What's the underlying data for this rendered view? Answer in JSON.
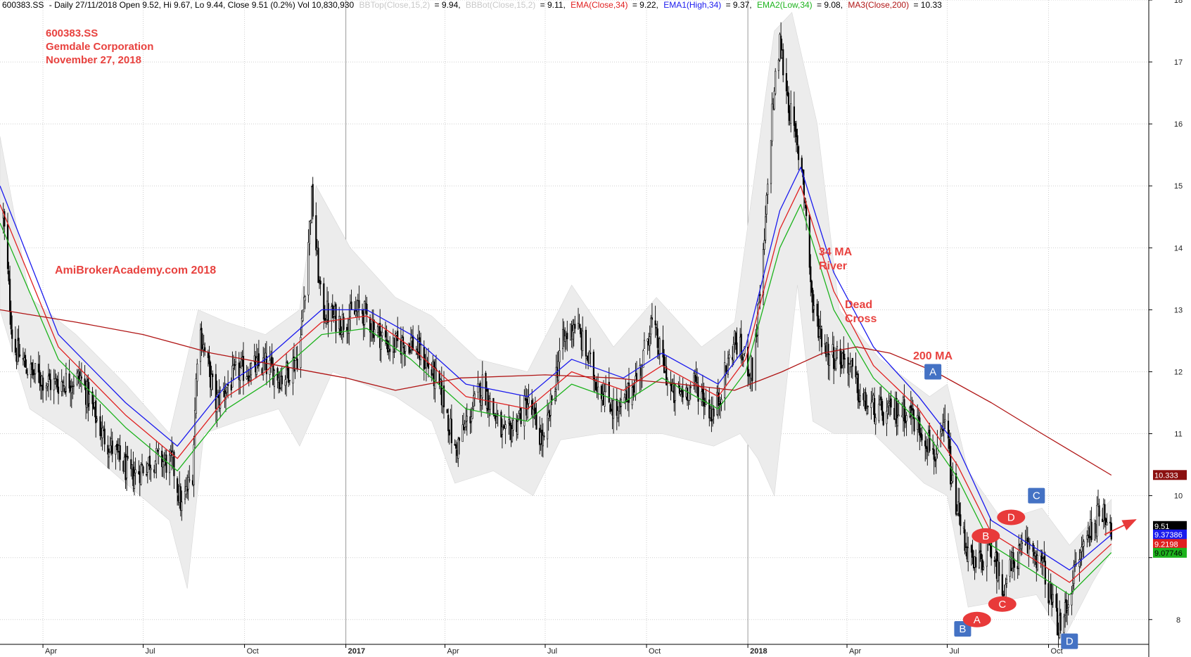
{
  "header": {
    "symbol": "600383.SS",
    "info": "- Daily 27/11/2018 Open 9.52, Hi 9.67, Lo 9.44, Close 9.51 (0.2%) Vol 10,830,930",
    "bbtop_label": "BBTop(Close,15,2)",
    "bbtop_value": "= 9.94,",
    "bbbot_label": "BBBot(Close,15,2)",
    "bbbot_value": "= 9.11,",
    "ema_label": "EMA(Close,34)",
    "ema_value": "= 9.22,",
    "ema1_label": "EMA1(High,34)",
    "ema1_value": "= 9.37,",
    "ema2_label": "EMA2(Low,34)",
    "ema2_value": "= 9.08,",
    "ma3_label": "MA3(Close,200)",
    "ma3_value": "= 10.33"
  },
  "annotations": {
    "title_line1": "600383.SS",
    "title_line2": "Gemdale Corporation",
    "title_line3": "November 27, 2018",
    "watermark": "AmiBrokerAcademy.com  2018",
    "ma34_line1": "34 MA",
    "ma34_line2": "River",
    "dead_line1": "Dead",
    "dead_line2": "Cross",
    "ma200": "200 MA"
  },
  "colors": {
    "candles": "#000000",
    "bollinger_fill": "#ececec",
    "ema_close": "#e02020",
    "ema_high": "#1a1aee",
    "ema_low": "#1db31d",
    "ma200": "#b01515",
    "annotation": "#e8423f",
    "badge_blue": "#4472c4",
    "oval_red": "#e83a3a",
    "grid": "#cfcfcf",
    "separator": "#9a9a9a"
  },
  "chart_data": {
    "type": "line",
    "title": "600383.SS Gemdale Corporation November 27, 2018",
    "ylim": [
      7.6,
      18
    ],
    "y_ticks": [
      8,
      9,
      10,
      11,
      12,
      13,
      14,
      15,
      16,
      17,
      18
    ],
    "y_tick_labels": [
      "8",
      "",
      "10",
      "11",
      "12",
      "13",
      "14",
      "15",
      "16",
      "17",
      "18"
    ],
    "x_range": [
      "2016-02-22",
      "2018-12-31"
    ],
    "x_ticks": [
      {
        "date": "2016-04-01",
        "label": "Apr",
        "year_start": false
      },
      {
        "date": "2016-07-01",
        "label": "Jul",
        "year_start": false
      },
      {
        "date": "2016-10-01",
        "label": "Oct",
        "year_start": false
      },
      {
        "date": "2017-01-01",
        "label": "2017",
        "year_start": true
      },
      {
        "date": "2017-04-01",
        "label": "Apr",
        "year_start": false
      },
      {
        "date": "2017-07-01",
        "label": "Jul",
        "year_start": false
      },
      {
        "date": "2017-10-01",
        "label": "Oct",
        "year_start": false
      },
      {
        "date": "2018-01-01",
        "label": "2018",
        "year_start": true
      },
      {
        "date": "2018-04-01",
        "label": "Apr",
        "year_start": false
      },
      {
        "date": "2018-07-01",
        "label": "Jul",
        "year_start": false
      },
      {
        "date": "2018-10-01",
        "label": "Oct",
        "year_start": false
      }
    ],
    "price_path": [
      [
        "2016-02-25",
        14.5
      ],
      [
        "2016-03-05",
        12.4
      ],
      [
        "2016-03-20",
        12.0
      ],
      [
        "2016-04-10",
        11.8
      ],
      [
        "2016-05-05",
        11.9
      ],
      [
        "2016-05-25",
        11.0
      ],
      [
        "2016-06-20",
        10.3
      ],
      [
        "2016-07-10",
        10.6
      ],
      [
        "2016-07-28",
        10.5
      ],
      [
        "2016-08-05",
        9.8
      ],
      [
        "2016-08-15",
        10.4
      ],
      [
        "2016-08-20",
        12.8
      ],
      [
        "2016-09-05",
        11.5
      ],
      [
        "2016-09-25",
        12.0
      ],
      [
        "2016-10-20",
        12.1
      ],
      [
        "2016-11-05",
        11.9
      ],
      [
        "2016-11-20",
        12.3
      ],
      [
        "2016-12-01",
        14.8
      ],
      [
        "2016-12-10",
        13.0
      ],
      [
        "2016-12-28",
        12.8
      ],
      [
        "2017-01-15",
        13.0
      ],
      [
        "2017-02-10",
        12.4
      ],
      [
        "2017-03-01",
        12.5
      ],
      [
        "2017-03-20",
        12.0
      ],
      [
        "2017-04-01",
        11.5
      ],
      [
        "2017-04-10",
        10.7
      ],
      [
        "2017-05-05",
        11.8
      ],
      [
        "2017-05-25",
        10.9
      ],
      [
        "2017-06-15",
        11.5
      ],
      [
        "2017-06-30",
        10.8
      ],
      [
        "2017-07-15",
        12.4
      ],
      [
        "2017-07-28",
        12.8
      ],
      [
        "2017-08-15",
        11.9
      ],
      [
        "2017-09-05",
        11.3
      ],
      [
        "2017-09-25",
        12.0
      ],
      [
        "2017-10-05",
        12.8
      ],
      [
        "2017-10-25",
        11.6
      ],
      [
        "2017-11-15",
        11.8
      ],
      [
        "2017-12-01",
        11.3
      ],
      [
        "2017-12-20",
        12.5
      ],
      [
        "2018-01-05",
        12.0
      ],
      [
        "2018-01-15",
        13.8
      ],
      [
        "2018-01-23",
        16.2
      ],
      [
        "2018-01-30",
        17.3
      ],
      [
        "2018-02-10",
        16.0
      ],
      [
        "2018-02-20",
        15.2
      ],
      [
        "2018-03-01",
        13.0
      ],
      [
        "2018-03-15",
        12.3
      ],
      [
        "2018-04-01",
        12.2
      ],
      [
        "2018-04-15",
        11.5
      ],
      [
        "2018-05-05",
        11.3
      ],
      [
        "2018-05-25",
        11.4
      ],
      [
        "2018-06-10",
        11.0
      ],
      [
        "2018-06-22",
        10.6
      ],
      [
        "2018-06-30",
        11.2
      ],
      [
        "2018-07-05",
        10.2
      ],
      [
        "2018-07-15",
        9.4
      ],
      [
        "2018-07-25",
        8.8
      ],
      [
        "2018-08-10",
        9.2
      ],
      [
        "2018-08-20",
        8.5
      ],
      [
        "2018-09-01",
        9.0
      ],
      [
        "2018-09-15",
        9.2
      ],
      [
        "2018-09-25",
        8.9
      ],
      [
        "2018-10-05",
        8.2
      ],
      [
        "2018-10-12",
        7.8
      ],
      [
        "2018-10-22",
        8.6
      ],
      [
        "2018-11-05",
        9.4
      ],
      [
        "2018-11-20",
        9.8
      ],
      [
        "2018-11-27",
        9.51
      ]
    ],
    "series": [
      {
        "name": "EMA1(High,34)",
        "color": "#1a1aee",
        "points": [
          [
            "2016-02-22",
            15.0
          ],
          [
            "2016-04-15",
            12.6
          ],
          [
            "2016-06-15",
            11.5
          ],
          [
            "2016-08-01",
            10.8
          ],
          [
            "2016-09-15",
            11.8
          ],
          [
            "2016-10-20",
            12.2
          ],
          [
            "2016-12-10",
            13.0
          ],
          [
            "2017-01-20",
            13.0
          ],
          [
            "2017-03-01",
            12.6
          ],
          [
            "2017-04-20",
            11.8
          ],
          [
            "2017-06-15",
            11.6
          ],
          [
            "2017-07-25",
            12.2
          ],
          [
            "2017-09-10",
            11.9
          ],
          [
            "2017-10-15",
            12.3
          ],
          [
            "2017-12-05",
            11.8
          ],
          [
            "2017-12-30",
            12.4
          ],
          [
            "2018-01-30",
            14.6
          ],
          [
            "2018-02-18",
            15.3
          ],
          [
            "2018-03-20",
            13.6
          ],
          [
            "2018-04-25",
            12.4
          ],
          [
            "2018-06-05",
            11.6
          ],
          [
            "2018-07-10",
            10.8
          ],
          [
            "2018-08-10",
            9.6
          ],
          [
            "2018-09-15",
            9.2
          ],
          [
            "2018-10-20",
            8.8
          ],
          [
            "2018-11-27",
            9.37
          ]
        ]
      },
      {
        "name": "EMA(Close,34)",
        "color": "#e02020",
        "points": [
          [
            "2016-02-22",
            14.7
          ],
          [
            "2016-04-15",
            12.4
          ],
          [
            "2016-06-15",
            11.3
          ],
          [
            "2016-08-01",
            10.6
          ],
          [
            "2016-09-15",
            11.6
          ],
          [
            "2016-10-20",
            12.0
          ],
          [
            "2016-12-10",
            12.8
          ],
          [
            "2017-01-20",
            12.9
          ],
          [
            "2017-03-01",
            12.4
          ],
          [
            "2017-04-20",
            11.6
          ],
          [
            "2017-06-15",
            11.4
          ],
          [
            "2017-07-25",
            12.0
          ],
          [
            "2017-09-10",
            11.7
          ],
          [
            "2017-10-15",
            12.1
          ],
          [
            "2017-12-05",
            11.6
          ],
          [
            "2017-12-30",
            12.2
          ],
          [
            "2018-01-30",
            14.3
          ],
          [
            "2018-02-18",
            15.0
          ],
          [
            "2018-03-20",
            13.3
          ],
          [
            "2018-04-25",
            12.1
          ],
          [
            "2018-06-05",
            11.4
          ],
          [
            "2018-07-10",
            10.5
          ],
          [
            "2018-08-10",
            9.4
          ],
          [
            "2018-09-15",
            9.0
          ],
          [
            "2018-10-20",
            8.6
          ],
          [
            "2018-11-27",
            9.22
          ]
        ]
      },
      {
        "name": "EMA2(Low,34)",
        "color": "#1db31d",
        "points": [
          [
            "2016-02-22",
            14.4
          ],
          [
            "2016-04-15",
            12.2
          ],
          [
            "2016-06-15",
            11.1
          ],
          [
            "2016-08-01",
            10.4
          ],
          [
            "2016-09-15",
            11.4
          ],
          [
            "2016-10-20",
            11.8
          ],
          [
            "2016-12-10",
            12.6
          ],
          [
            "2017-01-20",
            12.7
          ],
          [
            "2017-03-01",
            12.2
          ],
          [
            "2017-04-20",
            11.4
          ],
          [
            "2017-06-15",
            11.2
          ],
          [
            "2017-07-25",
            11.8
          ],
          [
            "2017-09-10",
            11.5
          ],
          [
            "2017-10-15",
            11.9
          ],
          [
            "2017-12-05",
            11.4
          ],
          [
            "2017-12-30",
            12.0
          ],
          [
            "2018-01-30",
            14.0
          ],
          [
            "2018-02-18",
            14.7
          ],
          [
            "2018-03-20",
            13.0
          ],
          [
            "2018-04-25",
            11.9
          ],
          [
            "2018-06-05",
            11.2
          ],
          [
            "2018-07-10",
            10.3
          ],
          [
            "2018-08-10",
            9.2
          ],
          [
            "2018-09-15",
            8.8
          ],
          [
            "2018-10-20",
            8.4
          ],
          [
            "2018-11-27",
            9.08
          ]
        ]
      },
      {
        "name": "MA3(Close,200)",
        "color": "#b01515",
        "points": [
          [
            "2016-02-22",
            13.0
          ],
          [
            "2016-05-01",
            12.8
          ],
          [
            "2016-07-01",
            12.6
          ],
          [
            "2016-09-01",
            12.3
          ],
          [
            "2016-11-01",
            12.1
          ],
          [
            "2017-01-01",
            11.9
          ],
          [
            "2017-02-15",
            11.7
          ],
          [
            "2017-04-15",
            11.9
          ],
          [
            "2017-07-01",
            11.95
          ],
          [
            "2017-09-01",
            11.9
          ],
          [
            "2017-11-01",
            11.8
          ],
          [
            "2017-12-20",
            11.7
          ],
          [
            "2018-02-01",
            12.0
          ],
          [
            "2018-03-10",
            12.3
          ],
          [
            "2018-04-10",
            12.4
          ],
          [
            "2018-05-10",
            12.3
          ],
          [
            "2018-06-20",
            12.0
          ],
          [
            "2018-08-10",
            11.5
          ],
          [
            "2018-09-25",
            11.0
          ],
          [
            "2018-11-27",
            10.33
          ]
        ]
      }
    ],
    "bollinger_band": {
      "name": "BBTop/BBBot(Close,15,2)",
      "upper": [
        [
          "2016-02-22",
          15.8
        ],
        [
          "2016-03-20",
          13.2
        ],
        [
          "2016-05-01",
          12.6
        ],
        [
          "2016-06-15",
          11.8
        ],
        [
          "2016-07-25",
          11.0
        ],
        [
          "2016-08-20",
          13.0
        ],
        [
          "2016-09-15",
          12.8
        ],
        [
          "2016-10-20",
          12.6
        ],
        [
          "2016-11-20",
          13.0
        ],
        [
          "2016-12-05",
          15.0
        ],
        [
          "2017-01-05",
          14.0
        ],
        [
          "2017-02-15",
          13.2
        ],
        [
          "2017-03-20",
          12.9
        ],
        [
          "2017-05-01",
          12.2
        ],
        [
          "2017-06-15",
          12.0
        ],
        [
          "2017-07-25",
          13.4
        ],
        [
          "2017-09-01",
          12.4
        ],
        [
          "2017-10-10",
          13.2
        ],
        [
          "2017-11-20",
          12.4
        ],
        [
          "2017-12-20",
          12.8
        ],
        [
          "2018-01-25",
          17.5
        ],
        [
          "2018-02-10",
          17.8
        ],
        [
          "2018-03-05",
          16.0
        ],
        [
          "2018-03-25",
          13.0
        ],
        [
          "2018-05-01",
          12.2
        ],
        [
          "2018-06-15",
          11.6
        ],
        [
          "2018-07-01",
          11.8
        ],
        [
          "2018-07-20",
          10.4
        ],
        [
          "2018-08-20",
          9.6
        ],
        [
          "2018-09-25",
          9.8
        ],
        [
          "2018-10-20",
          9.2
        ],
        [
          "2018-11-27",
          9.94
        ]
      ],
      "lower": [
        [
          "2016-02-22",
          13.0
        ],
        [
          "2016-03-20",
          11.4
        ],
        [
          "2016-05-01",
          10.9
        ],
        [
          "2016-06-15",
          10.2
        ],
        [
          "2016-07-25",
          9.6
        ],
        [
          "2016-08-10",
          8.5
        ],
        [
          "2016-08-25",
          11.0
        ],
        [
          "2016-09-25",
          11.2
        ],
        [
          "2016-11-01",
          11.4
        ],
        [
          "2016-11-20",
          10.8
        ],
        [
          "2016-12-20",
          12.0
        ],
        [
          "2017-02-15",
          11.6
        ],
        [
          "2017-03-20",
          11.2
        ],
        [
          "2017-04-10",
          10.2
        ],
        [
          "2017-05-15",
          10.4
        ],
        [
          "2017-06-20",
          10.0
        ],
        [
          "2017-07-15",
          10.9
        ],
        [
          "2017-08-20",
          11.0
        ],
        [
          "2017-10-15",
          11.0
        ],
        [
          "2017-12-01",
          10.8
        ],
        [
          "2017-12-25",
          11.0
        ],
        [
          "2018-01-10",
          10.6
        ],
        [
          "2018-01-25",
          10.0
        ],
        [
          "2018-02-15",
          13.4
        ],
        [
          "2018-03-01",
          11.2
        ],
        [
          "2018-03-20",
          11.0
        ],
        [
          "2018-04-25",
          11.0
        ],
        [
          "2018-06-10",
          10.2
        ],
        [
          "2018-07-01",
          10.0
        ],
        [
          "2018-07-20",
          8.2
        ],
        [
          "2018-08-20",
          8.3
        ],
        [
          "2018-09-20",
          8.4
        ],
        [
          "2018-10-15",
          7.7
        ],
        [
          "2018-11-10",
          8.6
        ],
        [
          "2018-11-27",
          9.11
        ]
      ]
    },
    "value_tags": [
      {
        "value": 10.333,
        "label": "10.333",
        "bg": "#8b1010",
        "fg": "#ffffff"
      },
      {
        "value": 9.51,
        "label": "9.51",
        "bg": "#000000",
        "fg": "#ffffff"
      },
      {
        "value": 9.37386,
        "label": "9.37386",
        "bg": "#1a1aee",
        "fg": "#ffffff"
      },
      {
        "value": 9.2198,
        "label": "9.2198",
        "bg": "#e02020",
        "fg": "#ffffff"
      },
      {
        "value": 9.07746,
        "label": "9.07746",
        "bg": "#1db31d",
        "fg": "#000000"
      }
    ],
    "abcd_points": [
      {
        "label": "A",
        "date": "2018-06-18",
        "price": 12.0,
        "style": "square"
      },
      {
        "label": "B",
        "date": "2018-07-15",
        "price": 7.85,
        "style": "square"
      },
      {
        "label": "C",
        "date": "2018-09-20",
        "price": 10.0,
        "style": "square"
      },
      {
        "label": "D",
        "date": "2018-10-20",
        "price": 7.65,
        "style": "square"
      },
      {
        "label": "A",
        "date": "2018-07-28",
        "price": 8.0,
        "style": "oval"
      },
      {
        "label": "B",
        "date": "2018-08-05",
        "price": 9.35,
        "style": "oval"
      },
      {
        "label": "C",
        "date": "2018-08-20",
        "price": 8.25,
        "style": "oval"
      },
      {
        "label": "D",
        "date": "2018-08-28",
        "price": 9.65,
        "style": "oval"
      }
    ]
  }
}
